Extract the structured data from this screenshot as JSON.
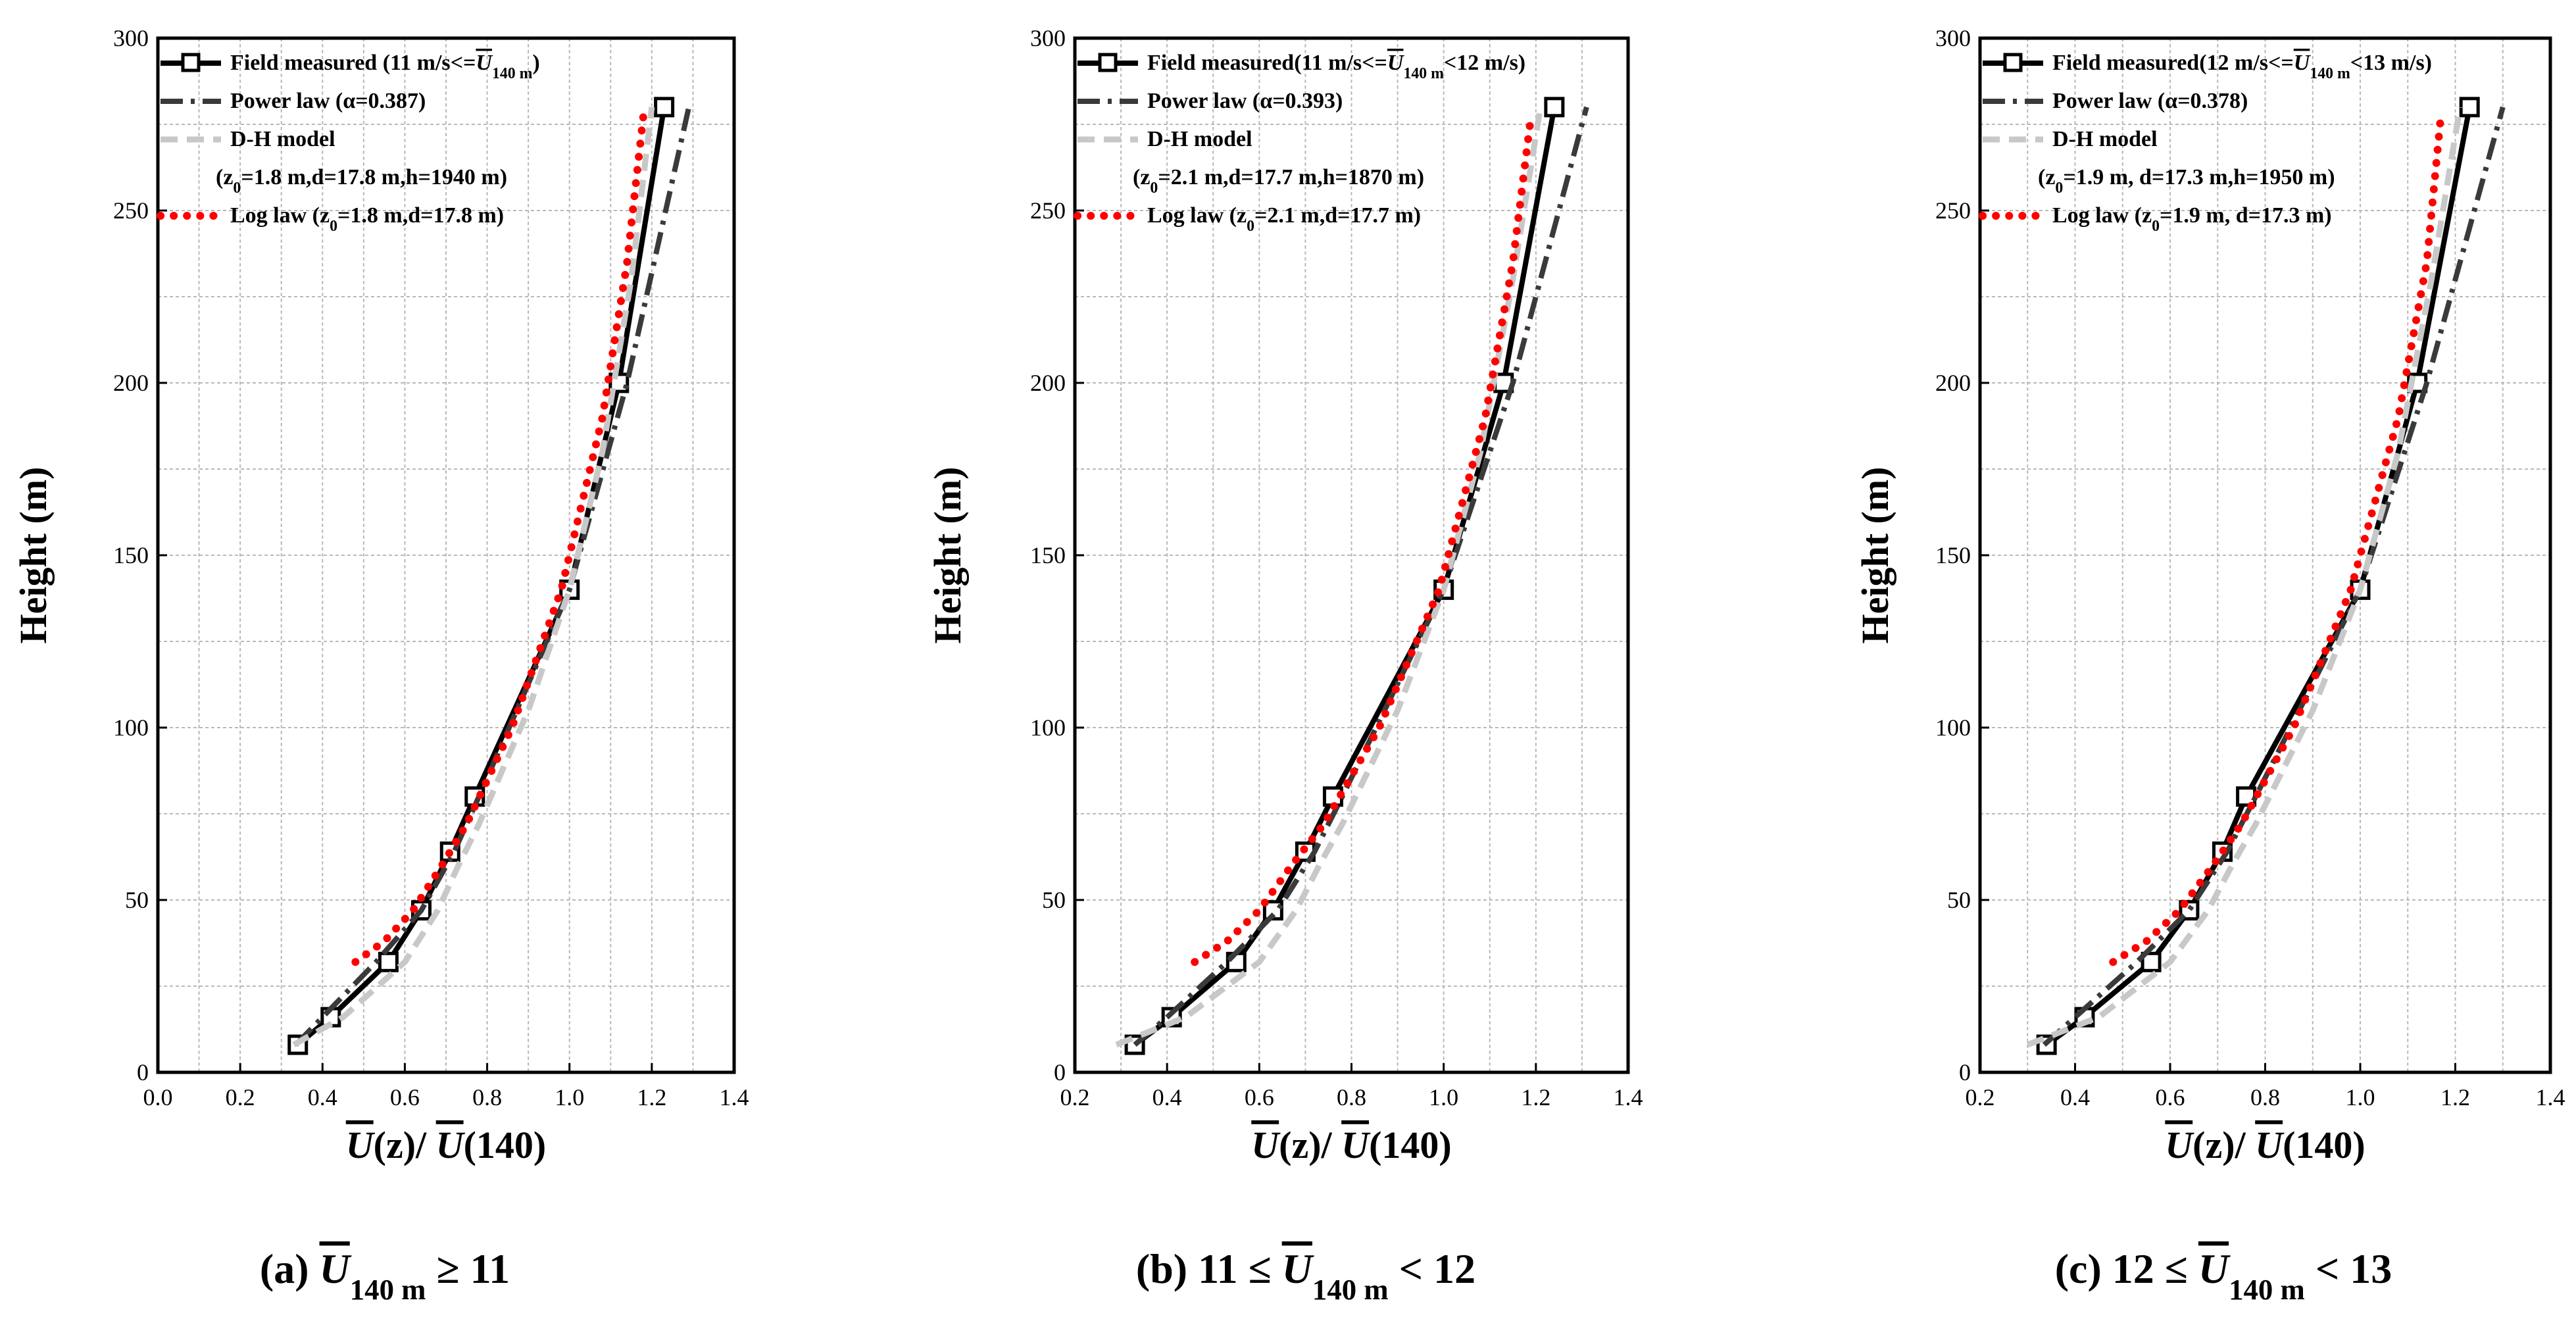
{
  "chart_data": [
    {
      "type": "line",
      "panel": "a",
      "caption": "(a)  Ū140 m ≥ 11",
      "xlabel": "Ū(z)/ Ū(140)",
      "ylabel": "Height (m)",
      "xlim": [
        0.0,
        1.4
      ],
      "ylim": [
        0,
        300
      ],
      "xticks": [
        0.0,
        0.2,
        0.4,
        0.6,
        0.8,
        1.0,
        1.2,
        1.4
      ],
      "yticks": [
        0,
        50,
        100,
        150,
        200,
        250,
        300
      ],
      "xtick_labels": [
        "0.0",
        "0.2",
        "0.4",
        "0.6",
        "0.8",
        "1.0",
        "1.2",
        "1.4"
      ],
      "ytick_labels": [
        "0",
        "50",
        "100",
        "150",
        "200",
        "250",
        "300"
      ],
      "grid": true,
      "legend_position": "top-left",
      "series": [
        {
          "name": "Field measured (11 m/s<=Ū140 m)",
          "style": "field",
          "color": "#000000",
          "x": [
            0.34,
            0.42,
            0.56,
            0.64,
            0.71,
            0.77,
            1.0,
            1.12,
            1.23
          ],
          "y": [
            8,
            16,
            32,
            47,
            64,
            80,
            140,
            200,
            280
          ]
        },
        {
          "name": "Power law (α=0.387)",
          "style": "dashdot",
          "color": "#3a3a3a",
          "x": [
            0.335,
            0.4,
            0.53,
            0.64,
            0.72,
            0.78,
            1.0,
            1.14,
            1.29
          ],
          "y": [
            8,
            16,
            32,
            47,
            64,
            80,
            140,
            200,
            280
          ]
        },
        {
          "name": "D-H model",
          "name2": "(z0=1.8 m,d=17.8 m,h=1940 m)",
          "style": "dash",
          "color": "#c8c8c8",
          "x": [
            0.33,
            0.45,
            0.6,
            0.68,
            0.73,
            0.78,
            0.9,
            1.0,
            1.08,
            1.15,
            1.2
          ],
          "y": [
            8,
            16,
            32,
            47,
            60,
            72,
            105,
            140,
            180,
            230,
            280
          ]
        },
        {
          "name": "Log law (z0=1.8 m,d=17.8 m)",
          "style": "dot",
          "color": "#ff0000",
          "x": [
            0.48,
            0.55,
            0.62,
            0.69,
            0.75,
            0.86,
            0.98,
            1.08,
            1.14,
            1.18
          ],
          "y": [
            32,
            38,
            47,
            60,
            72,
            100,
            140,
            190,
            235,
            278
          ]
        }
      ]
    },
    {
      "type": "line",
      "panel": "b",
      "caption": "(b) 11 ≤ Ū140 m < 12",
      "xlabel": "Ū(z)/ Ū(140)",
      "ylabel": "Height (m)",
      "xlim": [
        0.2,
        1.4
      ],
      "ylim": [
        0,
        300
      ],
      "xticks": [
        0.2,
        0.4,
        0.6,
        0.8,
        1.0,
        1.2,
        1.4
      ],
      "yticks": [
        0,
        50,
        100,
        150,
        200,
        250,
        300
      ],
      "xtick_labels": [
        "0.2",
        "0.4",
        "0.6",
        "0.8",
        "1.0",
        "1.2",
        "1.4"
      ],
      "ytick_labels": [
        "0",
        "50",
        "100",
        "150",
        "200",
        "250",
        "300"
      ],
      "grid": true,
      "legend_position": "top-left",
      "series": [
        {
          "name": "Field measured(11 m/s<=Ū140 m<12 m/s)",
          "style": "field",
          "color": "#000000",
          "x": [
            0.33,
            0.41,
            0.55,
            0.63,
            0.7,
            0.76,
            1.0,
            1.13,
            1.24
          ],
          "y": [
            8,
            16,
            32,
            47,
            64,
            80,
            140,
            200,
            280
          ]
        },
        {
          "name": "Power law (α=0.393)",
          "style": "dashdot",
          "color": "#3a3a3a",
          "x": [
            0.33,
            0.4,
            0.53,
            0.64,
            0.72,
            0.78,
            1.0,
            1.15,
            1.31
          ],
          "y": [
            8,
            16,
            32,
            47,
            64,
            80,
            140,
            200,
            280
          ]
        },
        {
          "name": "D-H model",
          "name2": "(z0=2.1 m,d=17.7 m,h=1870 m)",
          "style": "dash",
          "color": "#c8c8c8",
          "x": [
            0.29,
            0.44,
            0.6,
            0.68,
            0.73,
            0.78,
            0.9,
            1.0,
            1.08,
            1.15,
            1.21
          ],
          "y": [
            8,
            16,
            32,
            47,
            60,
            72,
            105,
            140,
            180,
            230,
            280
          ]
        },
        {
          "name": "Log law (z0=2.1 m,d=17.7 m)",
          "style": "dot",
          "color": "#ff0000",
          "x": [
            0.46,
            0.53,
            0.6,
            0.67,
            0.74,
            0.86,
            0.99,
            1.09,
            1.15,
            1.19
          ],
          "y": [
            32,
            38,
            47,
            60,
            72,
            100,
            140,
            190,
            235,
            278
          ]
        }
      ]
    },
    {
      "type": "line",
      "panel": "c",
      "caption": "(c) 12 ≤ Ū140 m < 13",
      "xlabel": "Ū(z)/ Ū(140)",
      "ylabel": "Height (m)",
      "xlim": [
        0.2,
        1.4
      ],
      "ylim": [
        0,
        300
      ],
      "xticks": [
        0.2,
        0.4,
        0.6,
        0.8,
        1.0,
        1.2,
        1.4
      ],
      "yticks": [
        0,
        50,
        100,
        150,
        200,
        250,
        300
      ],
      "xtick_labels": [
        "0.2",
        "0.4",
        "0.6",
        "0.8",
        "1.0",
        "1.2",
        "1.4"
      ],
      "ytick_labels": [
        "0",
        "50",
        "100",
        "150",
        "200",
        "250",
        "300"
      ],
      "grid": true,
      "legend_position": "top-left",
      "series": [
        {
          "name": "Field measured(12 m/s<=Ū140 m<13 m/s)",
          "style": "field",
          "color": "#000000",
          "x": [
            0.34,
            0.42,
            0.56,
            0.64,
            0.71,
            0.76,
            1.0,
            1.12,
            1.23
          ],
          "y": [
            8,
            16,
            32,
            47,
            64,
            80,
            140,
            200,
            280
          ]
        },
        {
          "name": "Power law (α=0.378)",
          "style": "dashdot",
          "color": "#3a3a3a",
          "x": [
            0.335,
            0.4,
            0.53,
            0.64,
            0.72,
            0.78,
            1.0,
            1.14,
            1.3
          ],
          "y": [
            8,
            16,
            32,
            47,
            64,
            80,
            140,
            200,
            280
          ]
        },
        {
          "name": "D-H model",
          "name2": "(z0=1.9 m, d=17.3 m,h=1950 m)",
          "style": "dash",
          "color": "#c8c8c8",
          "x": [
            0.3,
            0.45,
            0.6,
            0.68,
            0.73,
            0.78,
            0.9,
            1.0,
            1.08,
            1.15,
            1.21
          ],
          "y": [
            8,
            16,
            32,
            47,
            60,
            72,
            105,
            140,
            180,
            230,
            280
          ]
        },
        {
          "name": "Log law (z0=1.9 m, d=17.3 m)",
          "style": "dot",
          "color": "#ff0000",
          "x": [
            0.48,
            0.55,
            0.62,
            0.69,
            0.75,
            0.86,
            0.98,
            1.08,
            1.14,
            1.17
          ],
          "y": [
            32,
            38,
            47,
            60,
            72,
            100,
            140,
            190,
            235,
            278
          ]
        }
      ]
    }
  ]
}
